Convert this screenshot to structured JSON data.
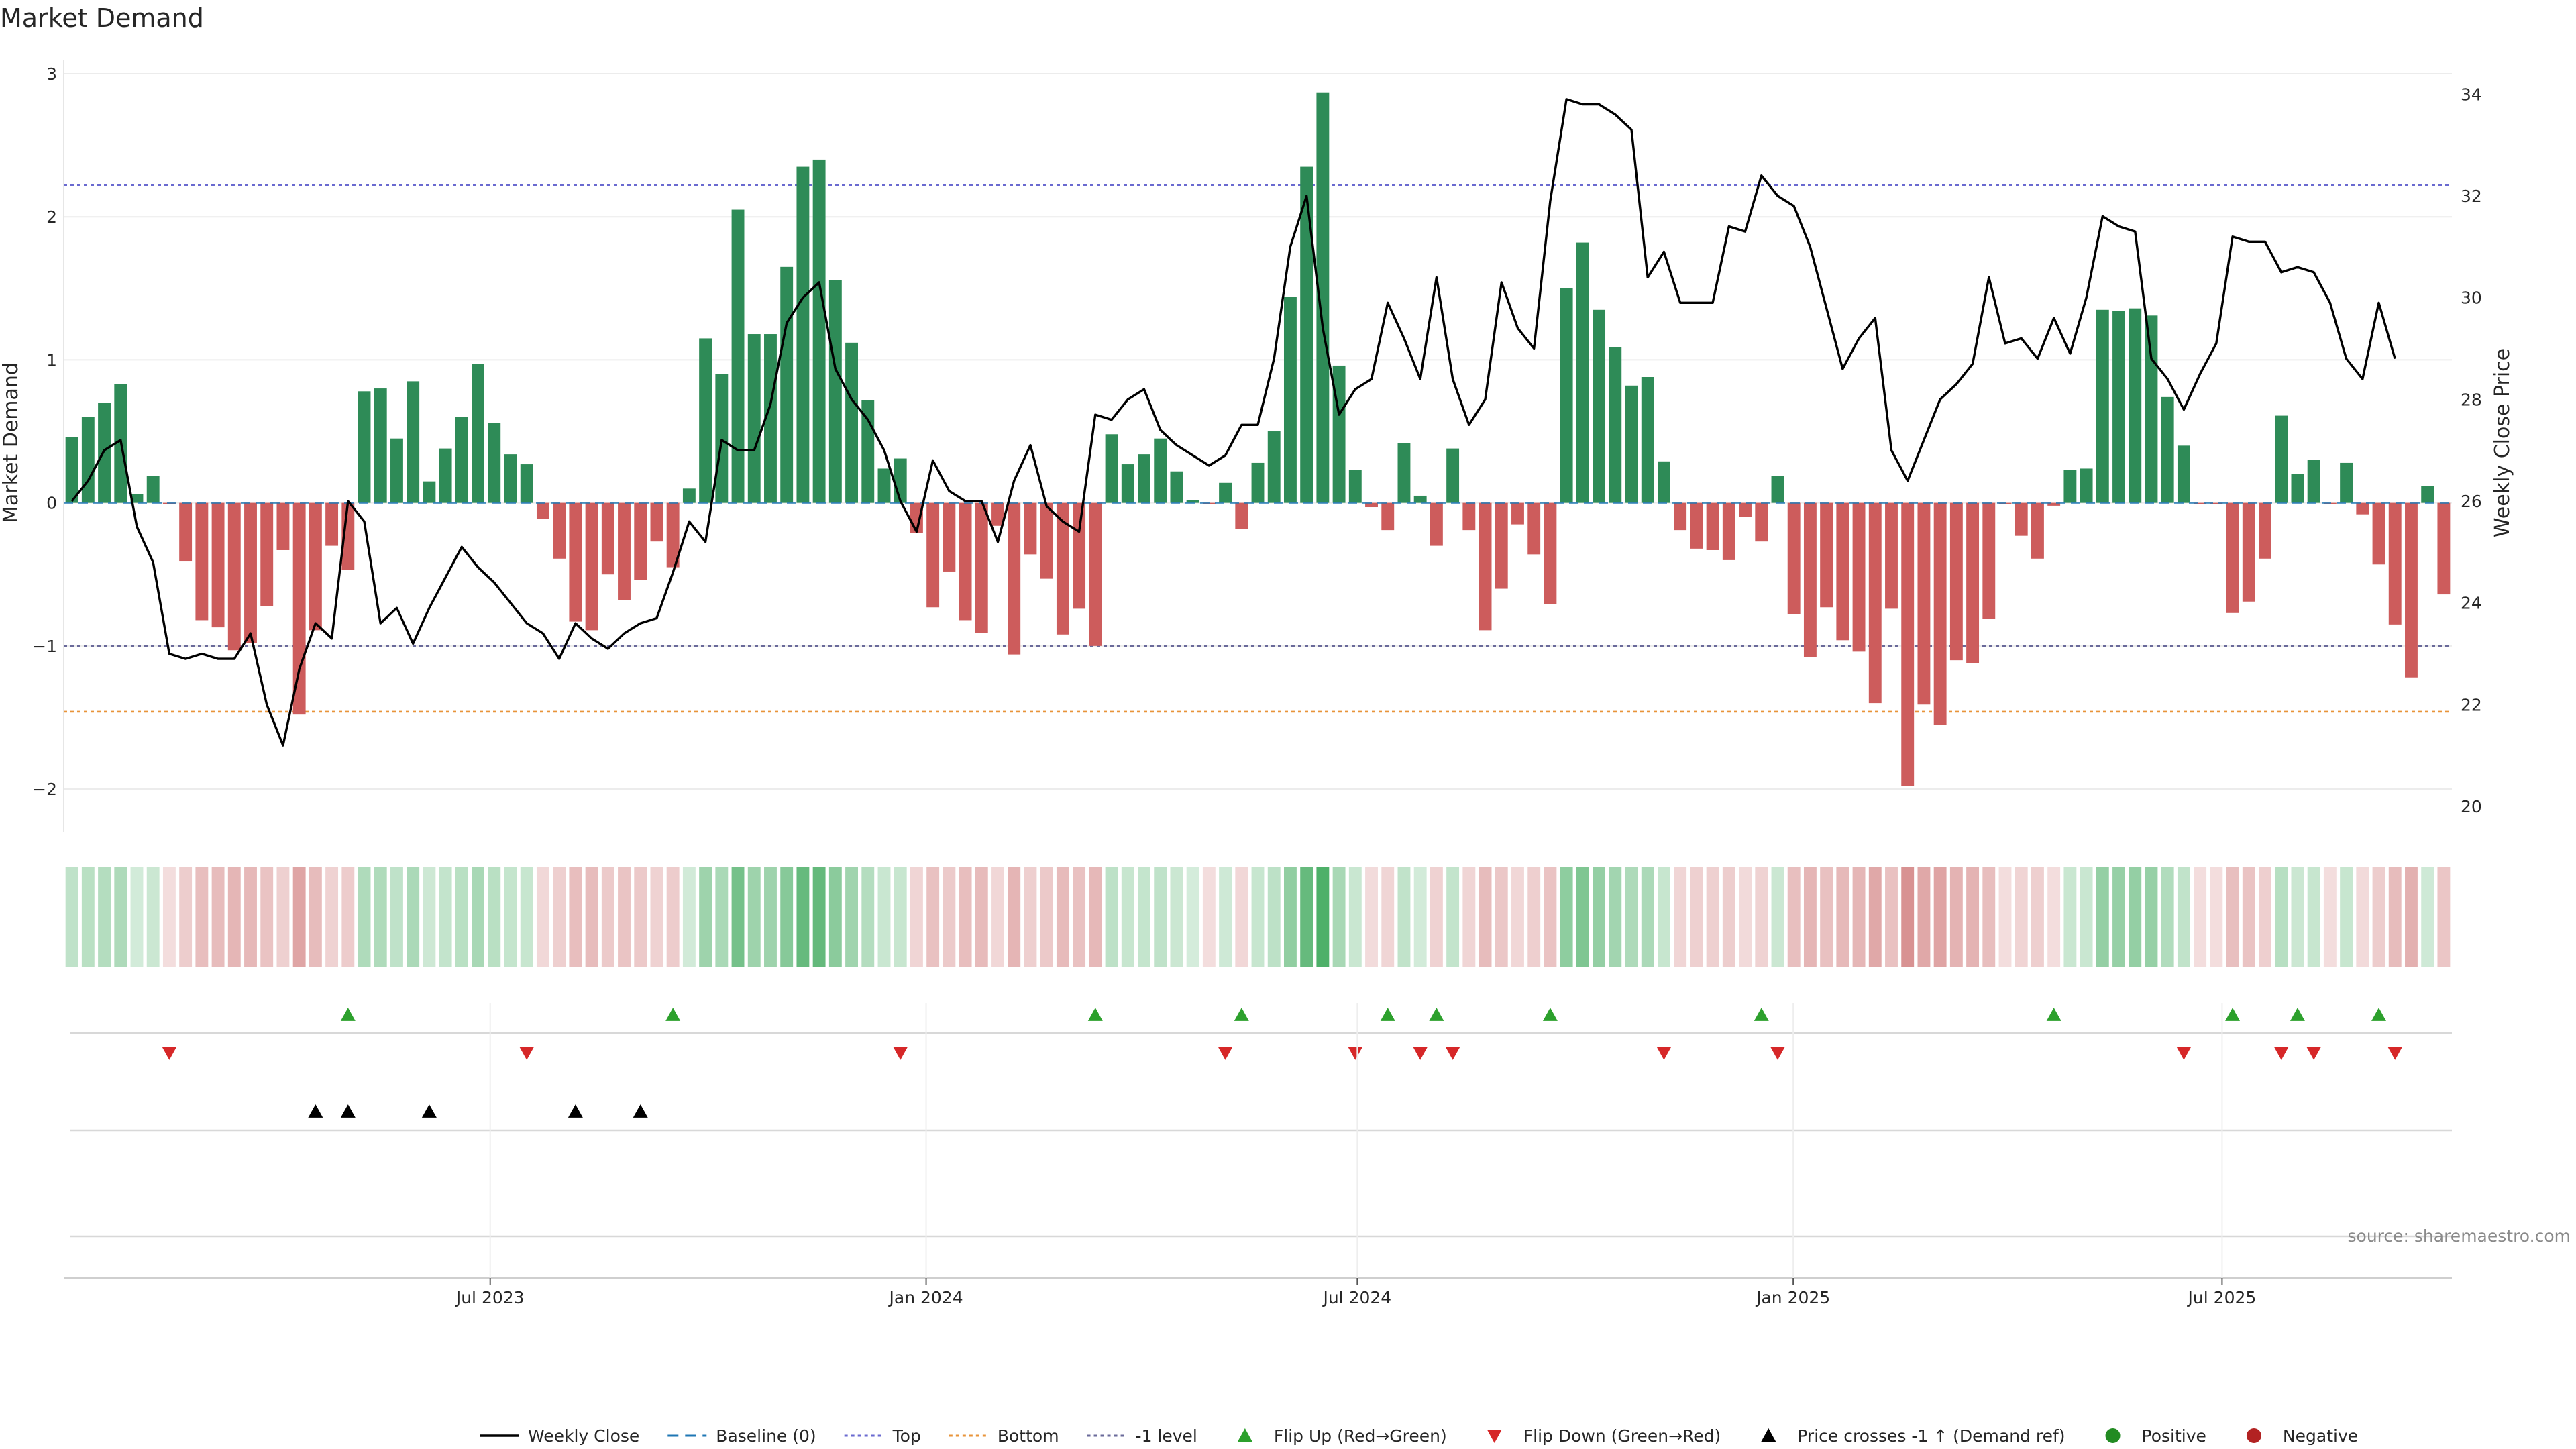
{
  "chart_data": {
    "type": "bar",
    "title": "Market Demand",
    "ylabel": "Market Demand",
    "y2label": "Weekly Close Price",
    "ylim": [
      -2.3,
      3.0
    ],
    "y2lim": [
      19.5,
      34.4
    ],
    "yticks": [
      -2,
      -1,
      0,
      1,
      2,
      3
    ],
    "y2ticks": [
      20,
      22,
      24,
      26,
      28,
      30,
      32,
      34
    ],
    "yticks_labels": [
      "−2",
      "−1",
      "0",
      "1",
      "2",
      "3"
    ],
    "x_start": "2023-01-02",
    "x_end": "2025-10-06",
    "x_ticks": [
      {
        "date": "2023-07-01",
        "label": "Jul 2023"
      },
      {
        "date": "2024-01-01",
        "label": "Jan 2024"
      },
      {
        "date": "2024-07-01",
        "label": "Jul 2024"
      },
      {
        "date": "2025-01-01",
        "label": "Jan 2025"
      },
      {
        "date": "2025-07-01",
        "label": "Jul 2025"
      }
    ],
    "reference_lines": [
      {
        "name": "Top",
        "value": 2.22,
        "color": "#6a6ad0"
      },
      {
        "name": "Bottom",
        "value": -1.46,
        "color": "#e8943a"
      },
      {
        "name": "-1 level",
        "value": -1.0,
        "color": "#6a6a9a"
      }
    ],
    "colors": {
      "positive_bar": "#2e8b57",
      "negative_bar": "#cd5c5c",
      "price_line": "#000000",
      "baseline": "#1f77b4",
      "flip_up": "#2ca02c",
      "flip_down": "#d62728",
      "price_cross": "#000000",
      "positive_dot": "#228b22",
      "negative_dot": "#b22222"
    },
    "demand": [
      0.46,
      0.6,
      0.7,
      0.83,
      0.06,
      0.19,
      -0.01,
      -0.41,
      -0.82,
      -0.87,
      -1.03,
      -0.98,
      -0.72,
      -0.33,
      -1.48,
      -0.89,
      -0.3,
      -0.47,
      0.78,
      0.8,
      0.45,
      0.85,
      0.15,
      0.38,
      0.6,
      0.97,
      0.56,
      0.34,
      0.27,
      -0.11,
      -0.39,
      -0.83,
      -0.89,
      -0.5,
      -0.68,
      -0.54,
      -0.27,
      -0.45,
      0.1,
      1.15,
      0.9,
      2.05,
      1.18,
      1.18,
      1.65,
      2.35,
      2.4,
      1.56,
      1.12,
      0.72,
      0.24,
      0.31,
      -0.21,
      -0.73,
      -0.48,
      -0.82,
      -0.91,
      -0.16,
      -1.06,
      -0.36,
      -0.53,
      -0.92,
      -0.74,
      -1.0,
      0.48,
      0.27,
      0.34,
      0.45,
      0.22,
      0.02,
      -0.01,
      0.14,
      -0.18,
      0.28,
      0.5,
      1.44,
      2.35,
      2.87,
      0.96,
      0.23,
      -0.03,
      -0.19,
      0.42,
      0.05,
      -0.3,
      0.38,
      -0.19,
      -0.89,
      -0.6,
      -0.15,
      -0.36,
      -0.71,
      1.5,
      1.82,
      1.35,
      1.09,
      0.82,
      0.88,
      0.29,
      -0.19,
      -0.32,
      -0.33,
      -0.4,
      -0.1,
      -0.27,
      0.19,
      -0.78,
      -1.08,
      -0.73,
      -0.96,
      -1.04,
      -1.4,
      -0.74,
      -1.98,
      -1.41,
      -1.55,
      -1.1,
      -1.12,
      -0.81,
      -0.01,
      -0.23,
      -0.39,
      -0.02,
      0.23,
      0.24,
      1.35,
      1.34,
      1.36,
      1.31,
      0.74,
      0.4,
      -0.01,
      -0.01,
      -0.77,
      -0.69,
      -0.39,
      0.61,
      0.2,
      0.3,
      -0.01,
      0.28,
      -0.08,
      -0.43,
      -0.85,
      -1.22,
      0.12,
      -0.64
    ],
    "price": [
      26.0,
      26.4,
      27.0,
      27.2,
      25.5,
      24.8,
      23.0,
      22.9,
      23.0,
      22.9,
      22.9,
      23.4,
      22.0,
      21.2,
      22.7,
      23.6,
      23.3,
      26.0,
      25.6,
      23.6,
      23.9,
      23.2,
      23.9,
      24.5,
      25.1,
      24.7,
      24.4,
      24.0,
      23.6,
      23.4,
      22.9,
      23.6,
      23.3,
      23.1,
      23.4,
      23.6,
      23.7,
      24.6,
      25.6,
      25.2,
      27.2,
      27.0,
      27.0,
      27.9,
      29.5,
      30.0,
      30.3,
      28.6,
      28.0,
      27.6,
      27.0,
      26.0,
      25.4,
      26.8,
      26.2,
      26.0,
      26.0,
      25.2,
      26.4,
      27.1,
      25.9,
      25.6,
      25.4,
      27.7,
      27.6,
      28.0,
      28.2,
      27.4,
      27.1,
      26.9,
      26.7,
      26.9,
      27.5,
      27.5,
      28.8,
      31.0,
      32.0,
      29.4,
      27.7,
      28.2,
      28.4,
      29.9,
      29.2,
      28.4,
      30.4,
      28.4,
      27.5,
      28.0,
      30.3,
      29.4,
      29.0,
      31.9,
      33.9,
      33.8,
      33.8,
      33.6,
      33.3,
      30.4,
      30.9,
      29.9,
      29.9,
      29.9,
      31.4,
      31.3,
      32.4,
      32.0,
      31.8,
      31.0,
      29.8,
      28.6,
      29.2,
      29.6,
      27.0,
      26.4,
      27.2,
      28.0,
      28.3,
      28.7,
      30.4,
      29.1,
      29.2,
      28.8,
      29.6,
      28.9,
      30.0,
      31.6,
      31.4,
      31.3,
      28.8,
      28.4,
      27.8,
      28.5,
      29.1,
      31.2,
      31.1,
      31.1,
      30.5,
      30.6,
      30.5,
      29.9,
      28.8,
      28.4,
      29.9,
      28.8
    ],
    "strip_intensity": "same as demand (green for positive, red for negative, saturation by magnitude)",
    "flip_up_weeks": [
      17,
      37,
      63,
      72,
      81,
      84,
      91,
      104,
      122,
      133,
      137,
      142
    ],
    "flip_down_weeks": [
      6,
      28,
      51,
      71,
      79,
      83,
      85,
      98,
      105,
      130,
      136,
      138,
      143
    ],
    "price_cross_weeks": [
      15,
      17,
      22,
      31,
      35
    ],
    "legend": [
      {
        "label": "Weekly Close",
        "marker": "line",
        "color": "#000000"
      },
      {
        "label": "Baseline (0)",
        "marker": "dash",
        "color": "#1f77b4"
      },
      {
        "label": "Top",
        "marker": "dot-line",
        "color": "#6a6ad0"
      },
      {
        "label": "Bottom",
        "marker": "dot-line",
        "color": "#e8943a"
      },
      {
        "label": "-1 level",
        "marker": "dot-line",
        "color": "#6a6a9a"
      },
      {
        "label": "Flip Up (Red→Green)",
        "marker": "tri-up",
        "color": "#2ca02c"
      },
      {
        "label": "Flip Down (Green→Red)",
        "marker": "tri-down",
        "color": "#d62728"
      },
      {
        "label": "Price crosses -1 ↑ (Demand ref)",
        "marker": "tri-up",
        "color": "#000000"
      },
      {
        "label": "Positive",
        "marker": "circle",
        "color": "#228b22"
      },
      {
        "label": "Negative",
        "marker": "circle",
        "color": "#b22222"
      }
    ],
    "legend_placement": "bottom-center",
    "grid": true
  },
  "source": "source: sharemaestro.com"
}
